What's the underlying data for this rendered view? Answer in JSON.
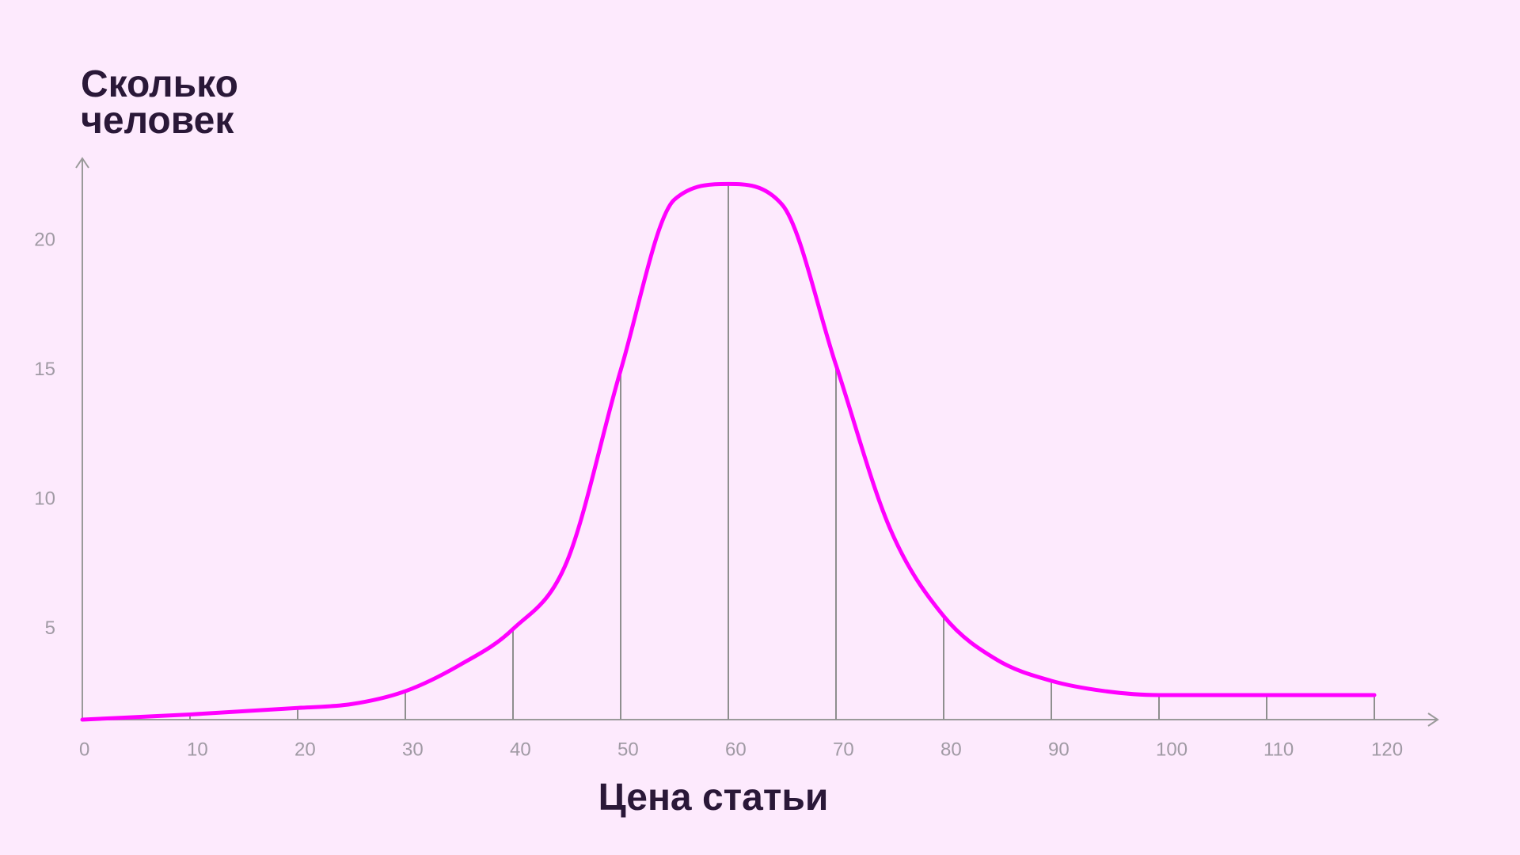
{
  "chart_data": {
    "type": "line",
    "y_label": "Сколько человек",
    "x_label": "Цена статьи",
    "x": [
      0,
      10,
      20,
      25,
      30,
      35,
      40,
      45,
      50,
      55,
      60,
      65,
      70,
      75,
      80,
      85,
      90,
      95,
      100,
      110,
      120
    ],
    "values": [
      1.5,
      1.7,
      1.95,
      2.1,
      2.6,
      3.6,
      5,
      7.6,
      15,
      21.6,
      22.2,
      21.4,
      15.2,
      8.9,
      5.5,
      3.8,
      3.0,
      2.6,
      2.45,
      2.45,
      2.45
    ],
    "color": "#ff00ff",
    "xlim": [
      0,
      126
    ],
    "xticks": [
      0,
      10,
      20,
      30,
      40,
      50,
      60,
      70,
      80,
      90,
      100,
      110,
      120
    ],
    "ylim": [
      1.5,
      23.1
    ],
    "yticks": [
      5,
      10,
      15,
      20
    ],
    "drop_lines": true
  }
}
